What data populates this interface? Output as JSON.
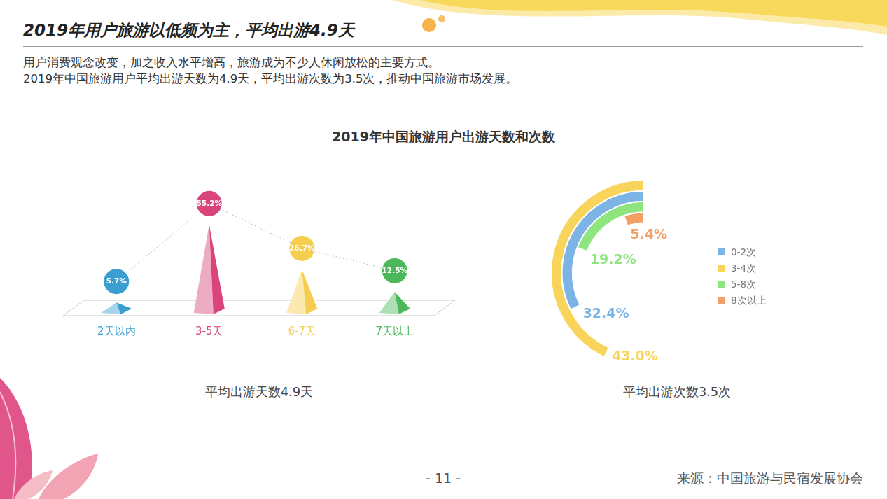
{
  "title": "2019年用户旅游以低频为主，平均出游4.9天",
  "subtitle": [
    "用户消费观念改变，加之收入水平增高，旅游成为不少人休闲放松的主要方式。",
    "2019年中国旅游用户平均出游天数为4.9天，平均出游次数为3.5次，推动中国旅游市场发展。"
  ],
  "heading": "2019年中国旅游用户出游天数和次数",
  "chart_data": [
    {
      "type": "bar",
      "categories": [
        "2天以内",
        "3-5天",
        "6-7天",
        "7天以上"
      ],
      "values": [
        5.7,
        55.2,
        26.7,
        12.5
      ],
      "value_labels": [
        "5.7%",
        "55.2%",
        "26.7%",
        "12.5%"
      ],
      "colors": [
        "#3a9fd0",
        "#d9457b",
        "#f5cd4f",
        "#4cb85a"
      ],
      "ylim": [
        0,
        60
      ],
      "grid": false,
      "tick_labels": "x",
      "data_labels": true,
      "caption": "平均出游天数4.9天"
    },
    {
      "type": "radial_bar",
      "categories": [
        "0-2次",
        "3-4次",
        "5-8次",
        "8次以上"
      ],
      "values": [
        32.4,
        43.0,
        19.2,
        5.4
      ],
      "value_labels": [
        "32.4%",
        "43.0%",
        "19.2%",
        "5.4%"
      ],
      "colors": [
        "#7db4e6",
        "#f8d45a",
        "#8fe57d",
        "#f3a066"
      ],
      "ylim": [
        0,
        100
      ],
      "legend": "right",
      "data_labels": true,
      "caption": "平均出游次数3.5次"
    }
  ],
  "page_number": "- 11 -",
  "source": "来源：中国旅游与民宿发展协会"
}
